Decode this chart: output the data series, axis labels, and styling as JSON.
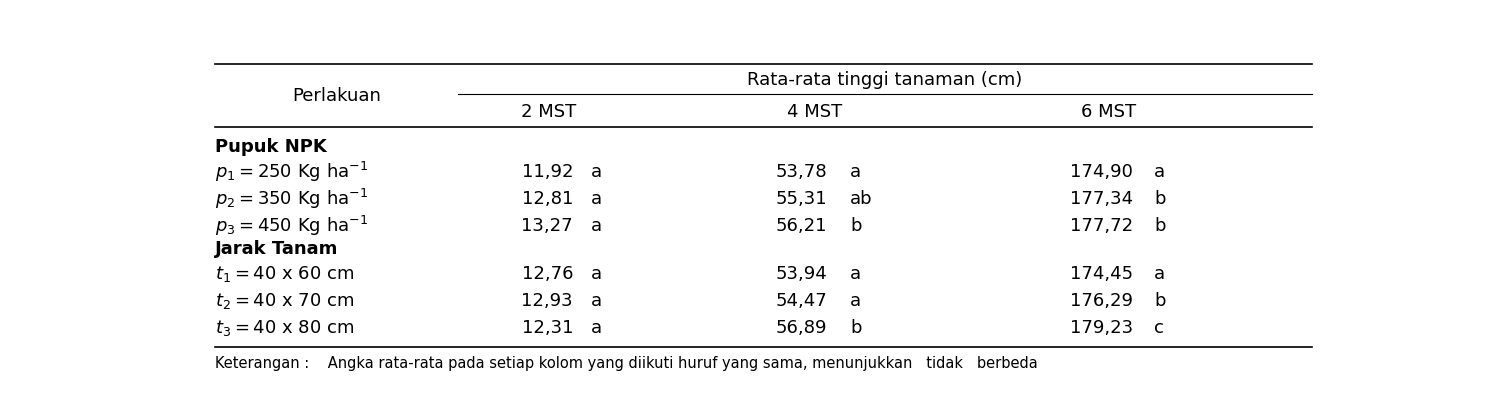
{
  "title_header": "Rata-rata tinggi tanaman (cm)",
  "col_header_perlakuan": "Perlakuan",
  "col_headers": [
    "2 MST",
    "4 MST",
    "6 MST"
  ],
  "section1_header": "Pupuk NPK",
  "section2_header": "Jarak Tanam",
  "rows": [
    {
      "label_math": "$p_1 = 250$ Kg ha$^{-1}$",
      "values": [
        "11,92",
        "53,78",
        "174,90"
      ],
      "sig": [
        "a",
        "a",
        "a"
      ]
    },
    {
      "label_math": "$p_2 = 350$ Kg ha$^{-1}$",
      "values": [
        "12,81",
        "55,31",
        "177,34"
      ],
      "sig": [
        "a",
        "ab",
        "b"
      ]
    },
    {
      "label_math": "$p_3 = 450$ Kg ha$^{-1}$",
      "values": [
        "13,27",
        "56,21",
        "177,72"
      ],
      "sig": [
        "a",
        "b",
        "b"
      ]
    },
    {
      "label_math": "$t_1 = 40$ x $60$ cm",
      "values": [
        "12,76",
        "53,94",
        "174,45"
      ],
      "sig": [
        "a",
        "a",
        "a"
      ]
    },
    {
      "label_math": "$t_2 = 40$ x $70$ cm",
      "values": [
        "12,93",
        "54,47",
        "176,29"
      ],
      "sig": [
        "a",
        "a",
        "b"
      ]
    },
    {
      "label_math": "$t_3 = 40$ x $80$ cm",
      "values": [
        "12,31",
        "56,89",
        "179,23"
      ],
      "sig": [
        "a",
        "b",
        "c"
      ]
    }
  ],
  "footnote": "Keterangan :    Angka rata-rata pada setiap kolom yang diikuti huruf yang sama, menunjukkan   tidak   berbeda",
  "bg_color": "#ffffff",
  "text_color": "#000000",
  "font_size": 13.0,
  "fig_width": 14.9,
  "fig_height": 4.2
}
